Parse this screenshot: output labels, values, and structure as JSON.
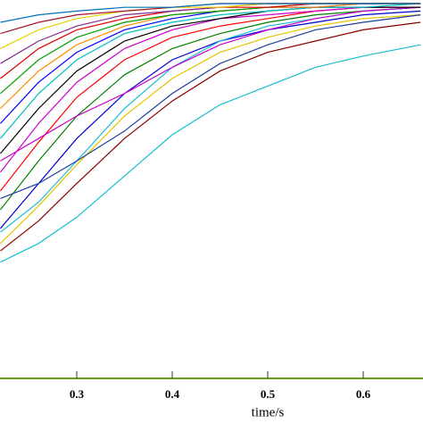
{
  "chart_data": {
    "type": "line",
    "xlabel": "time/s",
    "x": [
      0.22,
      0.26,
      0.3,
      0.35,
      0.4,
      0.45,
      0.5,
      0.55,
      0.6,
      0.66
    ],
    "xlim": [
      0.2196,
      0.6626
    ],
    "xticks": [
      0.3,
      0.4,
      0.5,
      0.6
    ],
    "ylim": [
      0,
      1
    ],
    "axis_color": "#6b9b1e",
    "series": [
      {
        "color": "#17becf",
        "values": [
          0.31,
          0.36,
          0.43,
          0.54,
          0.65,
          0.73,
          0.78,
          0.83,
          0.86,
          0.89
        ]
      },
      {
        "color": "#8b0000",
        "values": [
          0.34,
          0.42,
          0.52,
          0.64,
          0.74,
          0.82,
          0.87,
          0.9,
          0.93,
          0.95
        ]
      },
      {
        "color": "#e6c300",
        "values": [
          0.36,
          0.46,
          0.57,
          0.7,
          0.8,
          0.87,
          0.91,
          0.94,
          0.96,
          0.97
        ]
      },
      {
        "color": "#0000cc",
        "values": [
          0.4,
          0.52,
          0.64,
          0.76,
          0.85,
          0.9,
          0.93,
          0.95,
          0.97,
          0.98
        ]
      },
      {
        "color": "#17becf",
        "values": [
          0.39,
          0.47,
          0.58,
          0.72,
          0.83,
          0.9,
          0.94,
          0.96,
          0.98,
          0.99
        ]
      },
      {
        "color": "#008000",
        "values": [
          0.45,
          0.58,
          0.7,
          0.81,
          0.88,
          0.92,
          0.95,
          0.97,
          0.98,
          0.99
        ]
      },
      {
        "color": "#1f3f9f",
        "values": [
          0.48,
          0.52,
          0.58,
          0.66,
          0.76,
          0.84,
          0.89,
          0.93,
          0.95,
          0.97
        ]
      },
      {
        "color": "#ff0000",
        "values": [
          0.5,
          0.63,
          0.75,
          0.85,
          0.91,
          0.94,
          0.96,
          0.98,
          0.99,
          0.99
        ]
      },
      {
        "color": "#cc00cc",
        "values": [
          0.55,
          0.68,
          0.79,
          0.88,
          0.93,
          0.96,
          0.97,
          0.98,
          0.99,
          0.99
        ]
      },
      {
        "color": "#cc00cc",
        "values": [
          0.58,
          0.64,
          0.7,
          0.76,
          0.83,
          0.89,
          0.93,
          0.96,
          0.98,
          0.99
        ]
      },
      {
        "color": "#000000",
        "values": [
          0.6,
          0.72,
          0.82,
          0.9,
          0.94,
          0.96,
          0.98,
          0.99,
          0.99,
          0.99
        ]
      },
      {
        "color": "#00bfbf",
        "values": [
          0.64,
          0.76,
          0.85,
          0.92,
          0.95,
          0.97,
          0.98,
          0.99,
          0.99,
          1.0
        ]
      },
      {
        "color": "#0000ff",
        "values": [
          0.68,
          0.79,
          0.87,
          0.93,
          0.96,
          0.98,
          0.99,
          0.99,
          1.0,
          1.0
        ]
      },
      {
        "color": "#ff8c00",
        "values": [
          0.72,
          0.82,
          0.89,
          0.94,
          0.97,
          0.98,
          0.99,
          0.99,
          1.0,
          1.0
        ]
      },
      {
        "color": "#00a000",
        "values": [
          0.76,
          0.85,
          0.91,
          0.95,
          0.97,
          0.98,
          0.99,
          1.0,
          1.0,
          1.0
        ]
      },
      {
        "color": "#e00000",
        "values": [
          0.8,
          0.88,
          0.93,
          0.96,
          0.98,
          0.99,
          0.99,
          1.0,
          1.0,
          1.0
        ]
      },
      {
        "color": "#7e2f8e",
        "values": [
          0.84,
          0.9,
          0.94,
          0.97,
          0.98,
          0.99,
          1.0,
          1.0,
          1.0,
          1.0
        ]
      },
      {
        "color": "#e6d000",
        "values": [
          0.88,
          0.93,
          0.96,
          0.98,
          0.99,
          0.99,
          1.0,
          1.0,
          1.0,
          1.0
        ]
      },
      {
        "color": "#a2142f",
        "values": [
          0.92,
          0.95,
          0.97,
          0.98,
          0.99,
          1.0,
          1.0,
          1.0,
          1.0,
          1.0
        ]
      },
      {
        "color": "#0072bd",
        "values": [
          0.95,
          0.97,
          0.98,
          0.99,
          0.99,
          1.0,
          1.0,
          1.0,
          1.0,
          1.0
        ]
      }
    ]
  }
}
